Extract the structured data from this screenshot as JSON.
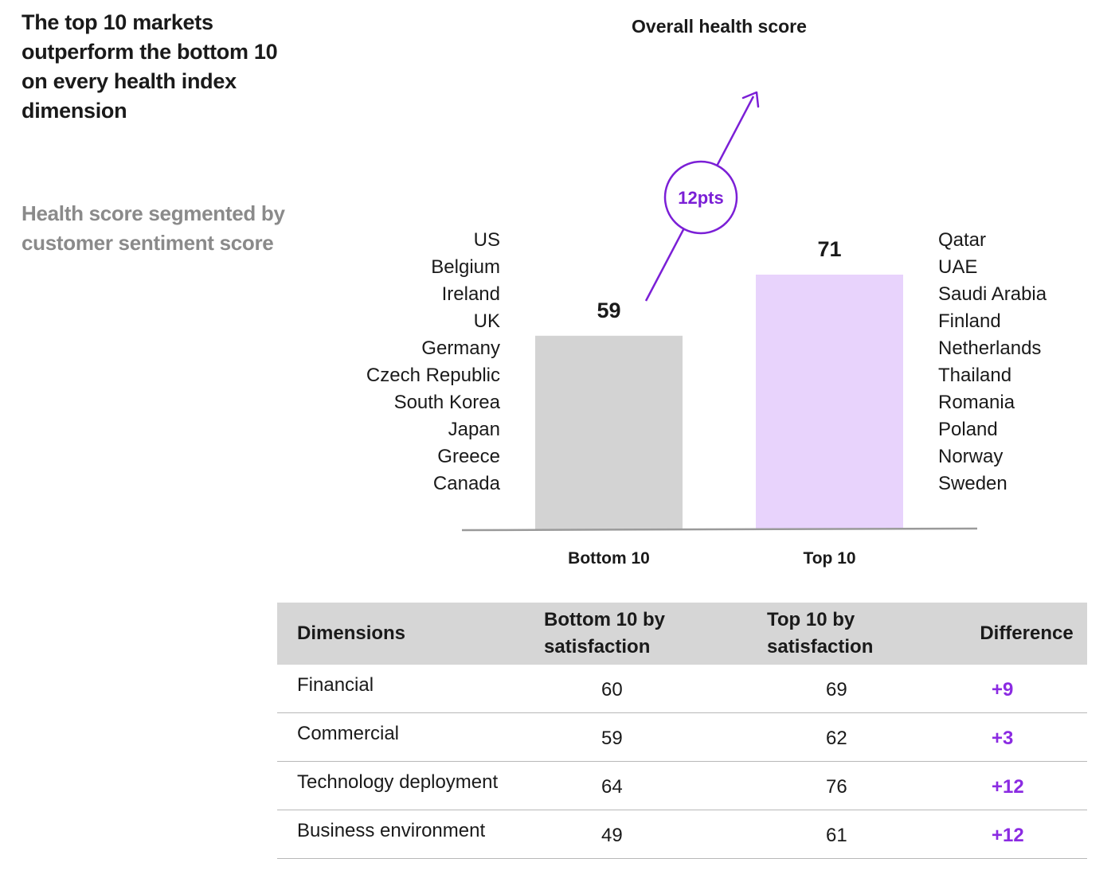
{
  "headline": "The top 10 markets outperform the bottom 10 on every health index dimension",
  "subhead": "Health score segmented by customer sentiment score",
  "chart_data": {
    "type": "bar",
    "title": "Overall health score",
    "categories": [
      "Bottom 10",
      "Top 10"
    ],
    "values": [
      59,
      71
    ],
    "value_labels": [
      "59",
      "71"
    ],
    "colors": [
      "#d3d3d3",
      "#e8d3fc"
    ],
    "difference_label": "12pts",
    "accent_color": "#7b1fd6",
    "ylim": [
      0,
      75
    ]
  },
  "bottom10_countries": [
    "US",
    "Belgium",
    "Ireland",
    "UK",
    "Germany",
    "Czech Republic",
    "South Korea",
    "Japan",
    "Greece",
    "Canada"
  ],
  "top10_countries": [
    "Qatar",
    "UAE",
    "Saudi Arabia",
    "Finland",
    "Netherlands",
    "Thailand",
    "Romania",
    "Poland",
    "Norway",
    "Sweden"
  ],
  "table": {
    "headers": [
      "Dimensions",
      "Bottom 10 by satisfaction",
      "Top 10 by satisfaction",
      "Difference"
    ],
    "rows": [
      {
        "dimension": "Financial",
        "bottom": "60",
        "top": "69",
        "diff": "+9"
      },
      {
        "dimension": "Commercial",
        "bottom": "59",
        "top": "62",
        "diff": "+3"
      },
      {
        "dimension": "Technology deployment",
        "bottom": "64",
        "top": "76",
        "diff": "+12"
      },
      {
        "dimension": "Business environment",
        "bottom": "49",
        "top": "61",
        "diff": "+12"
      }
    ]
  }
}
